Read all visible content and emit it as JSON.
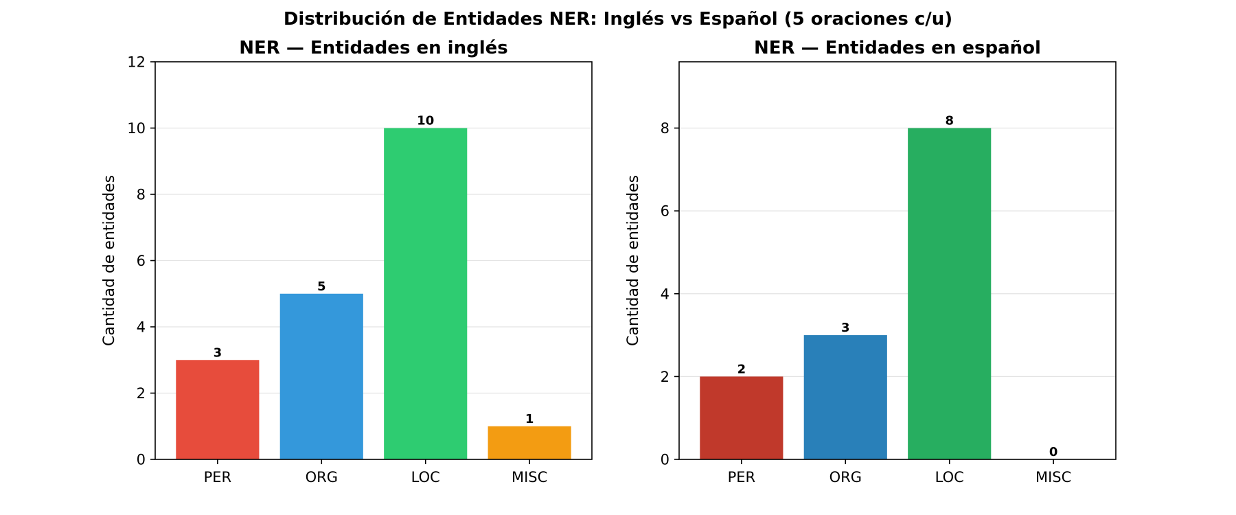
{
  "figure_title": "Distribución de Entidades NER: Inglés vs Español (5 oraciones c/u)",
  "chart_data": [
    {
      "type": "bar",
      "title": "NER — Entidades en inglés",
      "xlabel": "",
      "ylabel": "Cantidad de entidades",
      "categories": [
        "PER",
        "ORG",
        "LOC",
        "MISC"
      ],
      "values": [
        3,
        5,
        10,
        1
      ],
      "value_labels": [
        "3",
        "5",
        "10",
        "1"
      ],
      "colors": [
        "#e74c3c",
        "#3498db",
        "#2ecc71",
        "#f39c12"
      ],
      "ylim": [
        0,
        12
      ],
      "yticks": [
        0,
        2,
        4,
        6,
        8,
        10,
        12
      ],
      "ytick_labels": [
        "0",
        "2",
        "4",
        "6",
        "8",
        "10",
        "12"
      ],
      "grid": "y"
    },
    {
      "type": "bar",
      "title": "NER — Entidades en español",
      "xlabel": "",
      "ylabel": "Cantidad de entidades",
      "categories": [
        "PER",
        "ORG",
        "LOC",
        "MISC"
      ],
      "values": [
        2,
        3,
        8,
        0
      ],
      "value_labels": [
        "2",
        "3",
        "8",
        "0"
      ],
      "colors": [
        "#c0392b",
        "#2980b9",
        "#27ae60",
        "#d35400"
      ],
      "ylim": [
        0,
        9.6
      ],
      "yticks": [
        0,
        2,
        4,
        6,
        8
      ],
      "ytick_labels": [
        "0",
        "2",
        "4",
        "6",
        "8"
      ],
      "grid": "y"
    }
  ]
}
